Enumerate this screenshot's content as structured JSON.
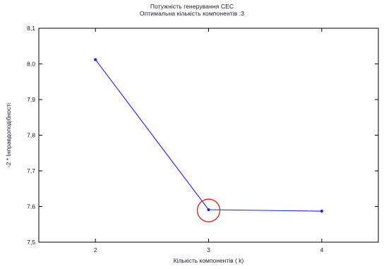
{
  "chart_data": {
    "type": "line",
    "title": "Потужність генерування СЕС",
    "subtitle": "Оптимальна кількість компонентів :3",
    "xlabel": "Кількість компонентів ( k)",
    "ylabel": "-2 * Інправдоподібності",
    "x_ticks": [
      "2",
      "3",
      "4"
    ],
    "y_ticks": [
      "7,5",
      "7,6",
      "7,7",
      "7,8",
      "7,9",
      "8,0",
      "8,1"
    ],
    "xlim": [
      1.5,
      4.5
    ],
    "ylim": [
      7.5,
      8.1
    ],
    "grid": false,
    "series": [
      {
        "color": "#2020e0",
        "points": [
          {
            "x": 2,
            "y": 8.012
          },
          {
            "x": 3,
            "y": 7.591
          },
          {
            "x": 4,
            "y": 7.587
          }
        ]
      }
    ],
    "highlight": {
      "x": 3,
      "y": 7.589,
      "color": "#e02020"
    }
  }
}
